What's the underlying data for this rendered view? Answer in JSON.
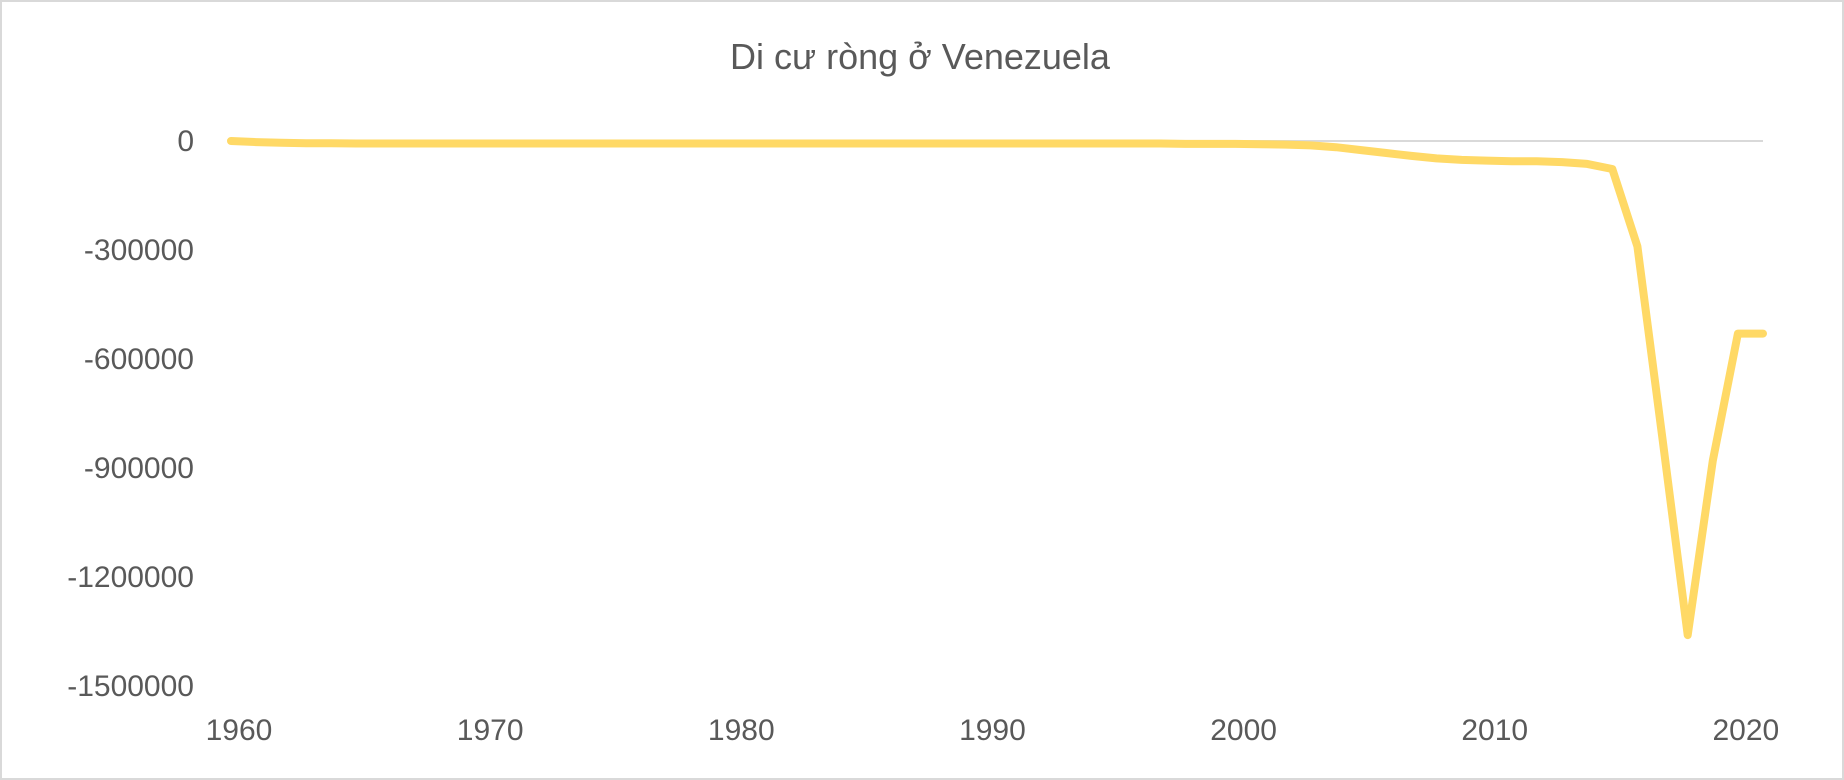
{
  "chart_data": {
    "type": "line",
    "title": "Di cư ròng ở Venezuela",
    "xlabel": "",
    "ylabel": "",
    "xlim": [
      1960,
      2021
    ],
    "ylim": [
      -1500000,
      0
    ],
    "y_ticks": [
      0,
      -300000,
      -600000,
      -900000,
      -1200000,
      -1500000
    ],
    "y_tick_labels": [
      "0",
      "-300000",
      "-600000",
      "-900000",
      "-1200000",
      "-1500000"
    ],
    "x_ticks": [
      1960,
      1970,
      1980,
      1990,
      2000,
      2010,
      2020
    ],
    "x_tick_labels": [
      "1960",
      "1970",
      "1980",
      "1990",
      "2000",
      "2010",
      "2020"
    ],
    "grid": "zero line only",
    "legend": "none",
    "colors": {
      "line": "#FFD966",
      "zero_line": "#D9D9D9",
      "text": "#595959",
      "border": "#D9D9D9"
    },
    "series": [
      {
        "x": [
          1960,
          1961,
          1962,
          1963,
          1964,
          1965,
          1966,
          1967,
          1968,
          1969,
          1970,
          1971,
          1972,
          1973,
          1974,
          1975,
          1976,
          1977,
          1978,
          1979,
          1980,
          1981,
          1982,
          1983,
          1984,
          1985,
          1986,
          1987,
          1988,
          1989,
          1990,
          1991,
          1992,
          1993,
          1994,
          1995,
          1996,
          1997,
          1998,
          1999,
          2000,
          2001,
          2002,
          2003,
          2004,
          2005,
          2006,
          2007,
          2008,
          2009,
          2010,
          2011,
          2012,
          2013,
          2014,
          2015,
          2016,
          2017,
          2018,
          2019,
          2020,
          2021
        ],
        "values": [
          0,
          -3000,
          -5000,
          -6000,
          -6000,
          -7000,
          -7000,
          -7000,
          -7000,
          -7000,
          -7000,
          -7000,
          -7000,
          -7000,
          -7000,
          -7000,
          -7000,
          -7000,
          -7000,
          -7000,
          -7000,
          -7000,
          -7000,
          -7000,
          -7000,
          -7000,
          -7000,
          -7000,
          -7000,
          -7000,
          -7000,
          -7000,
          -7000,
          -7000,
          -7000,
          -7000,
          -7000,
          -7000,
          -8000,
          -8000,
          -8000,
          -9000,
          -10000,
          -12000,
          -17000,
          -25000,
          -33000,
          -41000,
          -48000,
          -52000,
          -54000,
          -56000,
          -56000,
          -58000,
          -63000,
          -77000,
          -290000,
          -820000,
          -1360000,
          -880000,
          -530000,
          -530000
        ]
      }
    ]
  }
}
